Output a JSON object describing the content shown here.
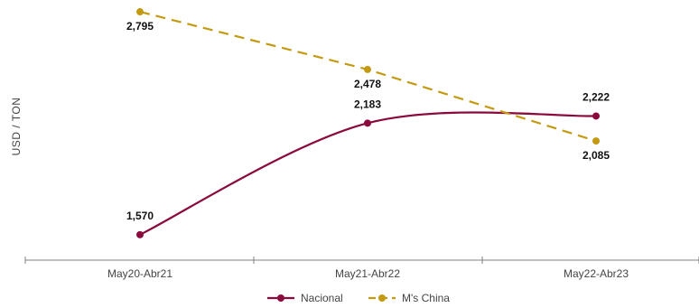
{
  "chart_data": {
    "type": "line",
    "title": "",
    "xlabel": "",
    "ylabel": "USD / TON",
    "categories": [
      "May20-Abr21",
      "May21-Abr22",
      "May22-Abr23"
    ],
    "series": [
      {
        "name": "Nacional",
        "values": [
          1570,
          2183,
          2222
        ],
        "labels": [
          "1,570",
          "2,183",
          "2,222"
        ],
        "color": "#8b0a3e",
        "dash": "solid"
      },
      {
        "name": "M's China",
        "values": [
          2795,
          2478,
          2085
        ],
        "labels": [
          "2,795",
          "2,478",
          "2,085"
        ],
        "color": "#c49a12",
        "dash": "dashed"
      }
    ],
    "ylim": [
      1450,
      2830
    ],
    "grid": false,
    "legend": "bottom-center"
  }
}
